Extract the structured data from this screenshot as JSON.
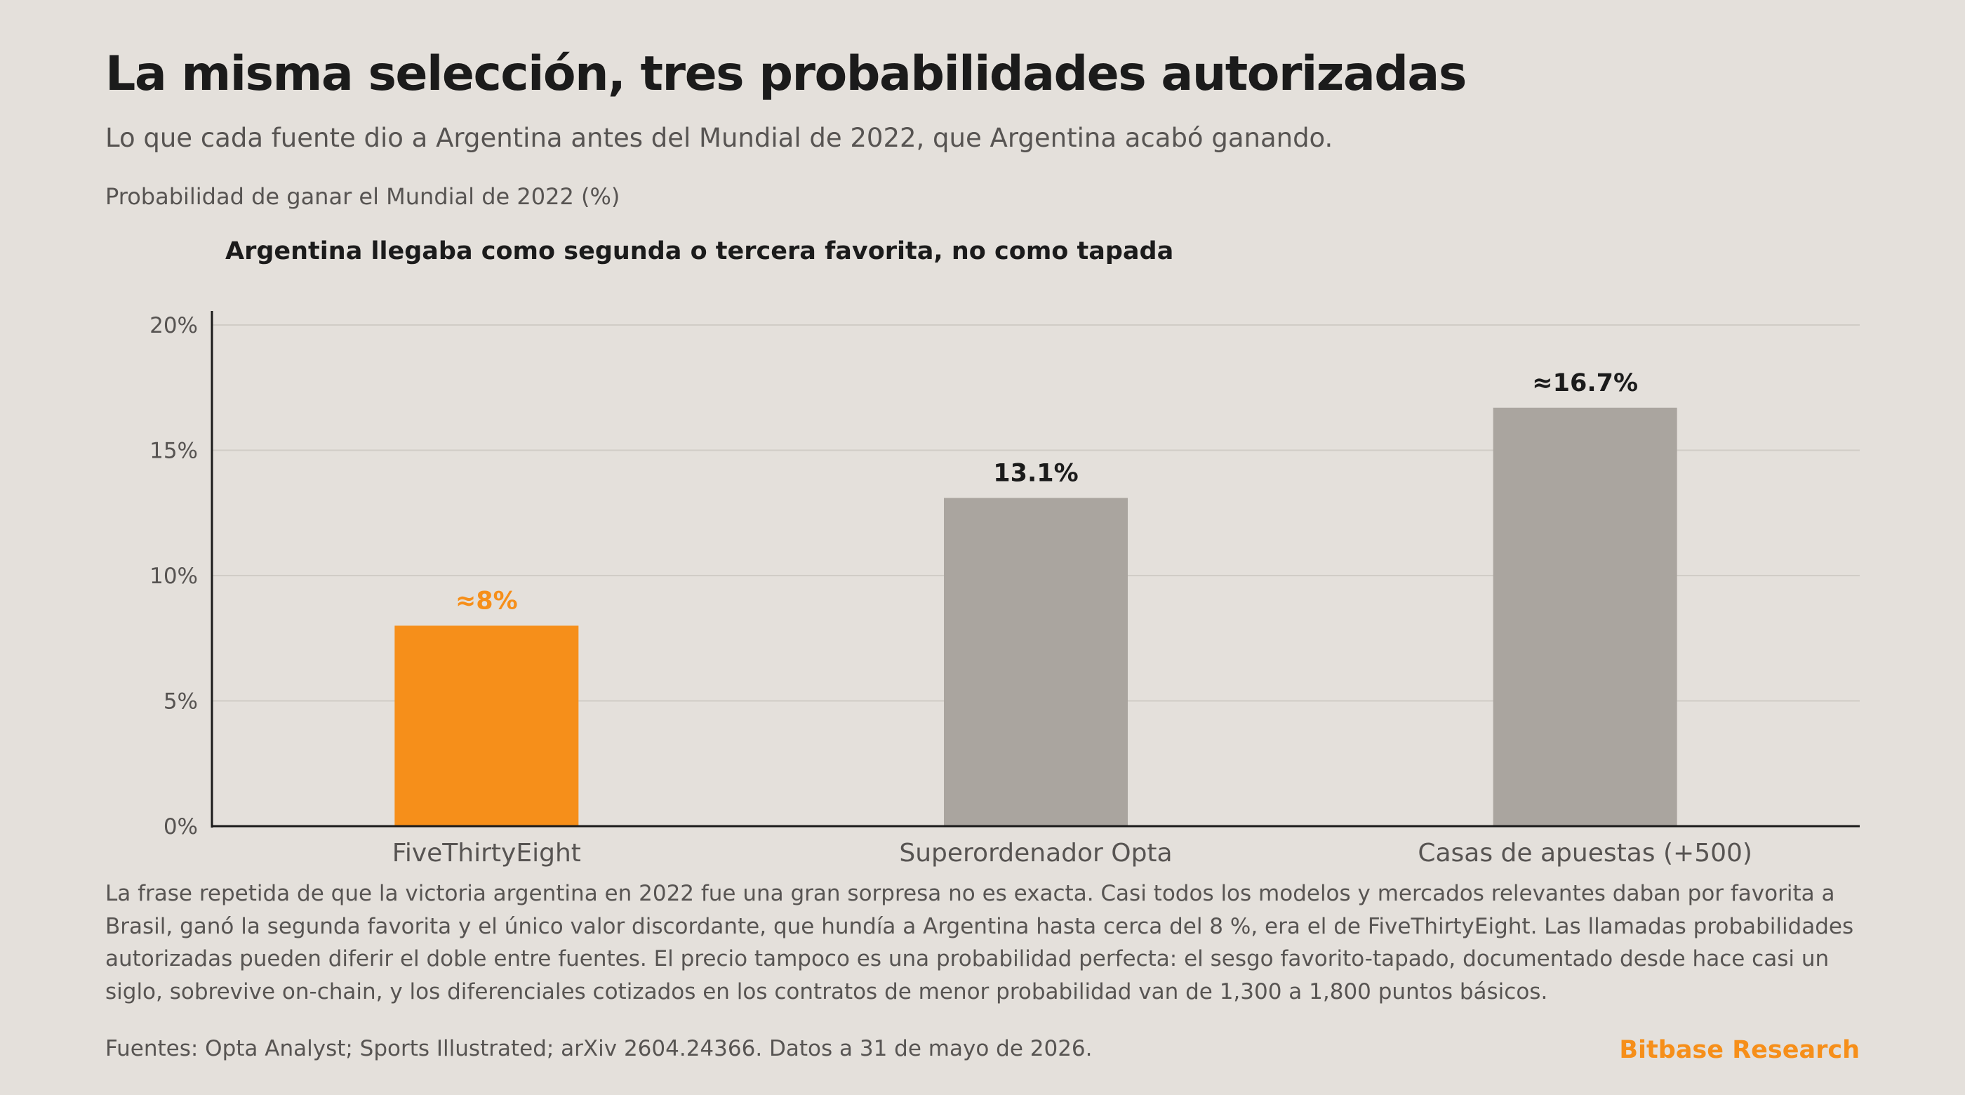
{
  "header": {
    "title": "La misma selección, tres probabilidades autorizadas",
    "subtitle": "Lo que cada fuente dio a Argentina antes del Mundial de 2022, que Argentina acabó ganando.",
    "axis_caption": "Probabilidad de ganar el Mundial de 2022 (%)"
  },
  "chart_data": {
    "type": "bar",
    "title": "Argentina llegaba como segunda o tercera favorita, no como tapada",
    "xlabel": "",
    "ylabel": "Probabilidad de ganar el Mundial de 2022 (%)",
    "categories": [
      "FiveThirtyEight",
      "Superordenador Opta",
      "Casas de apuestas (+500)"
    ],
    "values": [
      8,
      13.1,
      16.7
    ],
    "value_labels": [
      "≈8%",
      "13.1%",
      "≈16.7%"
    ],
    "colors": [
      "#f68f1a",
      "#aaa59f",
      "#aaa59f"
    ],
    "label_colors": [
      "#f68f1a",
      "#1b1b1b",
      "#1b1b1b"
    ],
    "ylim": [
      0,
      20
    ],
    "yticks": [
      0,
      5,
      10,
      15,
      20
    ],
    "ytick_labels": [
      "0%",
      "5%",
      "10%",
      "15%",
      "20%"
    ],
    "grid": true,
    "legend": "none"
  },
  "body": {
    "text": "La frase repetida de que la victoria argentina en 2022 fue una gran sorpresa no es exacta. Casi todos los modelos y mercados relevantes daban por favorita a Brasil, ganó la segunda favorita y el único valor discordante, que hundía a Argentina hasta cerca del 8 %, era el de FiveThirtyEight. Las llamadas probabilidades autorizadas pueden diferir el doble entre fuentes. El precio tampoco es una probabilidad perfecta: el sesgo favorito-tapado, documentado desde hace casi un siglo, sobrevive on-chain, y los diferenciales cotizados en los contratos de menor probabilidad van de 1,300 a 1,800 puntos básicos."
  },
  "footer": {
    "sources": "Fuentes: Opta Analyst; Sports Illustrated; arXiv 2604.24366. Datos a 31 de mayo de 2026.",
    "brand": "Bitbase Research"
  }
}
